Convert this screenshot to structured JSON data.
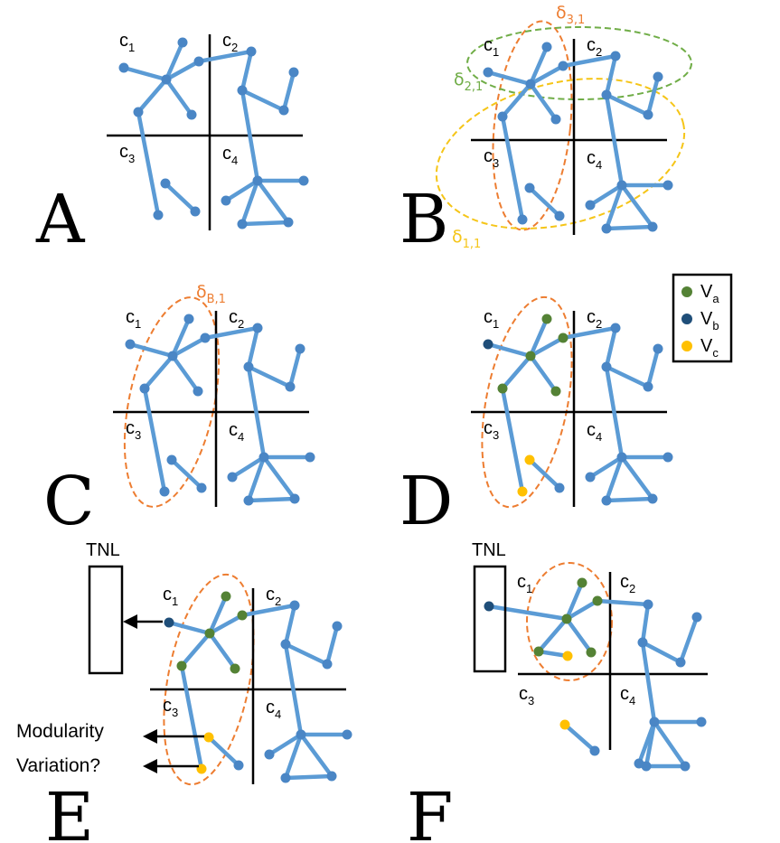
{
  "colors": {
    "edge": "#5b9bd5",
    "node": "#4a86c5",
    "Va": "#548235",
    "Vb": "#1f4e79",
    "Vc": "#ffc000",
    "delta_orange": "#ed7d31",
    "delta_green": "#70ad47",
    "delta_yellow": "#f5c518"
  },
  "panels": [
    {
      "id": "A",
      "letter": "A"
    },
    {
      "id": "B",
      "letter": "B",
      "ellipses": [
        {
          "label": "δ",
          "sub": "3,1",
          "color": "#ed7d31"
        },
        {
          "label": "δ",
          "sub": "2,1",
          "color": "#70ad47"
        },
        {
          "label": "δ",
          "sub": "1,1",
          "color": "#f5c518"
        }
      ]
    },
    {
      "id": "C",
      "letter": "C",
      "ellipses": [
        {
          "label": "δ",
          "sub": "B,1",
          "color": "#ed7d31"
        }
      ]
    },
    {
      "id": "D",
      "letter": "D"
    },
    {
      "id": "E",
      "letter": "E",
      "tnl": "TNL",
      "side_labels": [
        "Modularity",
        "Variation?"
      ]
    },
    {
      "id": "F",
      "letter": "F",
      "tnl": "TNL"
    }
  ],
  "community_labels": [
    {
      "text": "c",
      "sub": "1"
    },
    {
      "text": "c",
      "sub": "2"
    },
    {
      "text": "c",
      "sub": "3"
    },
    {
      "text": "c",
      "sub": "4"
    }
  ],
  "legend": [
    {
      "text": "V",
      "sub": "a",
      "color": "#548235"
    },
    {
      "text": "V",
      "sub": "b",
      "color": "#1f4e79"
    },
    {
      "text": "V",
      "sub": "c",
      "color": "#ffc000"
    }
  ]
}
